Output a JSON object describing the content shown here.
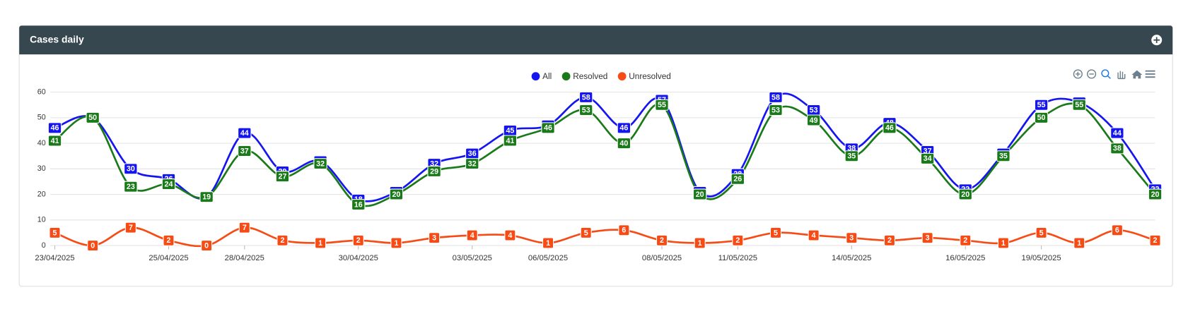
{
  "chart_data": {
    "type": "line",
    "title": "Cases daily",
    "categories": [
      "23/04/2025",
      null,
      null,
      "25/04/2025",
      null,
      "28/04/2025",
      null,
      null,
      "30/04/2025",
      null,
      null,
      "03/05/2025",
      null,
      "06/05/2025",
      null,
      null,
      "08/05/2025",
      null,
      "11/05/2025",
      null,
      null,
      "14/05/2025",
      null,
      null,
      "16/05/2025",
      null,
      "19/05/2025",
      null,
      null,
      null
    ],
    "series": [
      {
        "name": "All",
        "color": "#1515f0",
        "values": [
          46,
          50,
          30,
          26,
          19,
          44,
          29,
          33,
          18,
          21,
          32,
          36,
          45,
          47,
          58,
          46,
          57,
          21,
          28,
          58,
          53,
          38,
          48,
          37,
          22,
          36,
          55,
          56,
          44,
          22
        ]
      },
      {
        "name": "Resolved",
        "color": "#1a7a1a",
        "values": [
          41,
          50,
          23,
          24,
          19,
          37,
          27,
          32,
          16,
          20,
          29,
          32,
          41,
          46,
          53,
          40,
          55,
          20,
          26,
          53,
          49,
          35,
          46,
          34,
          20,
          35,
          50,
          55,
          38,
          20
        ]
      },
      {
        "name": "Unresolved",
        "color": "#f74b16",
        "values": [
          5,
          0,
          7,
          2,
          0,
          7,
          2,
          1,
          2,
          1,
          3,
          4,
          4,
          1,
          5,
          6,
          2,
          1,
          2,
          5,
          4,
          3,
          2,
          3,
          2,
          1,
          5,
          1,
          6,
          2
        ]
      }
    ],
    "ylim": [
      0,
      60
    ],
    "yticks": [
      0,
      10,
      20,
      30,
      40,
      50,
      60
    ],
    "grid": true,
    "legend": "top",
    "data_labels": true
  }
}
